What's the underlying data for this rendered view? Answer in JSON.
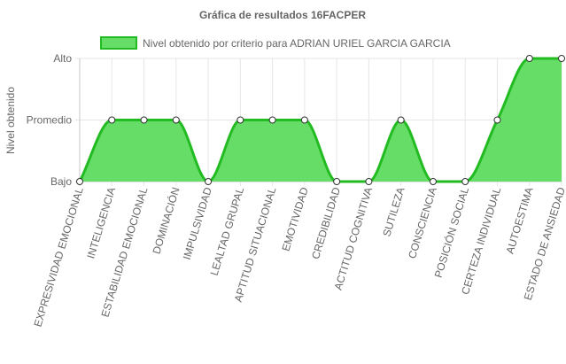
{
  "chart_data": {
    "type": "area",
    "title": "Gráfica de resultados 16FACPER",
    "ylabel": "Nivel obtenido",
    "xlabel": "",
    "y_categories": [
      "Bajo",
      "Promedio",
      "Alto"
    ],
    "categories": [
      "EXPRESIVIDAD EMOCIONAL",
      "INTELIGENCIA",
      "ESTABILIDAD EMOCIONAL",
      "DOMINACIÓN",
      "IMPULSIVIDAD",
      "LEALTAD GRUPAL",
      "APTITUD SITUACIONAL",
      "EMOTIVIDAD",
      "CREDIBILIDAD",
      "ACTITUD COGNITIVA",
      "SUTILEZA",
      "CONSCIENCIA",
      "POSICIÓN SOCIAL",
      "CERTEZA INDIVIDUAL",
      "AUTOESTIMA",
      "ESTADO DE ANSIEDAD"
    ],
    "series": [
      {
        "name": "Nivel obtenido por criterio para ADRIAN URIEL GARCIA GARCIA",
        "values": [
          0,
          1,
          1,
          1,
          0,
          1,
          1,
          1,
          0,
          0,
          1,
          0,
          0,
          1,
          2,
          2
        ],
        "fill_color": "#66dd66",
        "line_color": "#22bb22",
        "point_fill": "#ffffff",
        "point_stroke": "#333333"
      }
    ],
    "ylim": [
      0,
      2
    ],
    "grid": true,
    "legend_position": "top"
  }
}
